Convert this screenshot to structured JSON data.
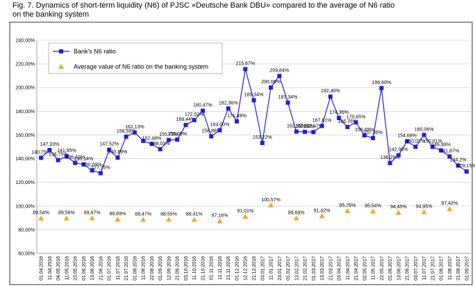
{
  "chart_data": {
    "type": "line",
    "title": "Fig. 7. Dynamics of short-term liquidity (N6) of PJSC «Deutsche Bank DBU» compared to the average of N6 ratio on the banking system",
    "categories": [
      "01.04.2016",
      "11.04.2016",
      "04.05.2016",
      "11.05.2016",
      "23.05.2016",
      "01.06.2016",
      "13.06.2016",
      "21.06.2016",
      "01.07.2016",
      "11.07.2016",
      "21.07.2016",
      "01.08.2016",
      "11.08.2016",
      "22.08.2016",
      "01.09.2016",
      "12.09.2016",
      "21.09.2016",
      "03.10.2016",
      "11.10.2016",
      "21.10.2016",
      "01.11.2016",
      "11.11.2016",
      "21.11.2016",
      "01.12.2016",
      "12.12.2016",
      "21.12.2016",
      "03.01.2017",
      "11.01.2017",
      "23.01.2017",
      "01.02.2017",
      "13.02.2017",
      "21.02.2017",
      "01.03.2017",
      "13.03.2017",
      "21.03.2017",
      "03.04.2017",
      "11.04.2017",
      "21.04.2017",
      "02.05.2017",
      "11.05.2017",
      "22.05.2017",
      "01.06.2017",
      "13.06.2017",
      "21.06.2017",
      "03.07.2017",
      "11.07.2017",
      "21.07.2017",
      "01.08.2017",
      "11.08.2017",
      "21.08.2017",
      "01.09.2017"
    ],
    "series": [
      {
        "name": "Bank's N6 ratio",
        "color": "#1f1fe0",
        "marker": "square",
        "line": true,
        "values": [
          140.75,
          147.33,
          138.75,
          141.95,
          136.42,
          135.14,
          130.09,
          127.75,
          147.52,
          140.89,
          158.59,
          162.13,
          155,
          152.48,
          148.01,
          155.72,
          156.09,
          168.44,
          172.52,
          180.47,
          158.86,
          164.0,
          182.36,
          171.49,
          215.67,
          189.34,
          153.22,
          200.06,
          209.84,
          187.34,
          162.89,
          162.68,
          162.47,
          167.61,
          192.4,
          174.36,
          166.76,
          170.65,
          159.69,
          157.36,
          199.6,
          136.29,
          142.9,
          154.68,
          150.02,
          160.06,
          150.01,
          146.99,
          141.87,
          134.2,
          129.15
        ],
        "value_labels": [
          "140,75%",
          "147,33%",
          "138,75%",
          "141,95%",
          "136,42%",
          "135,14%",
          "130,09%",
          "127,75%",
          "147,52%",
          "140,89%",
          "158,59%",
          "162,13%",
          null,
          "152,48%",
          "148,01%",
          "155,72%",
          "156,09%",
          "168,44%",
          "172,52%",
          "180,47%",
          "158,86%",
          "164,00%",
          "182,36%",
          "171,49%",
          "215,67%",
          "189,34%",
          "153,22%",
          "200,06%",
          "209,84%",
          "187,34%",
          "162,89%",
          "162,68%",
          "162,47%",
          "167,61%",
          "192,40%",
          "174,36%",
          "166,76%",
          "170,65%",
          "159,69%",
          "157,36%",
          "199,60%",
          "136,29%",
          "142,90%",
          "154,68%",
          "150,02%",
          "160,06%",
          "150,01%",
          "146,99%",
          "141,87%",
          "134,2%",
          "129,15%"
        ]
      },
      {
        "name": "Average value of N6 ratio on the banking system",
        "color": "#f5a623",
        "marker": "triangle",
        "line": false,
        "values": [
          89.54,
          null,
          null,
          89.56,
          null,
          null,
          89.67,
          null,
          null,
          88.69,
          null,
          null,
          88.47,
          null,
          null,
          88.55,
          null,
          null,
          88.41,
          null,
          null,
          87.16,
          null,
          null,
          91.01,
          null,
          null,
          100.57,
          null,
          null,
          89.69,
          null,
          null,
          91.42,
          null,
          null,
          95.76,
          null,
          null,
          95.54,
          null,
          null,
          94.45,
          null,
          null,
          94.95,
          null,
          null,
          97.42,
          null,
          null
        ],
        "value_labels": [
          "89,54%",
          null,
          null,
          "89,56%",
          null,
          null,
          "89,67%",
          null,
          null,
          "88,69%",
          null,
          null,
          "88,47%",
          null,
          null,
          "88,55%",
          null,
          null,
          "88,41%",
          null,
          null,
          "87,16%",
          null,
          null,
          "91,01%",
          null,
          null,
          "100,57%",
          null,
          null,
          "89,69%",
          null,
          null,
          "91,42%",
          null,
          null,
          "95,76%",
          null,
          null,
          "95,54%",
          null,
          null,
          "94,45%",
          null,
          null,
          "94,95%",
          null,
          null,
          "97,42%",
          null,
          null
        ]
      }
    ],
    "ylim": [
      60,
      240
    ],
    "yticks": [
      {
        "value": 60,
        "label": "60,00%"
      },
      {
        "value": 80,
        "label": "80,00%"
      },
      {
        "value": 100,
        "label": "100,00%"
      },
      {
        "value": 120,
        "label": "120,00%"
      },
      {
        "value": 140,
        "label": "140,00%"
      },
      {
        "value": 160,
        "label": "160,00%"
      },
      {
        "value": 180,
        "label": "180,00%"
      },
      {
        "value": 200,
        "label": "200,00%"
      },
      {
        "value": 220,
        "label": "220,00%"
      },
      {
        "value": 240,
        "label": "240,00%"
      }
    ],
    "grid": true,
    "legend": "upper left"
  }
}
